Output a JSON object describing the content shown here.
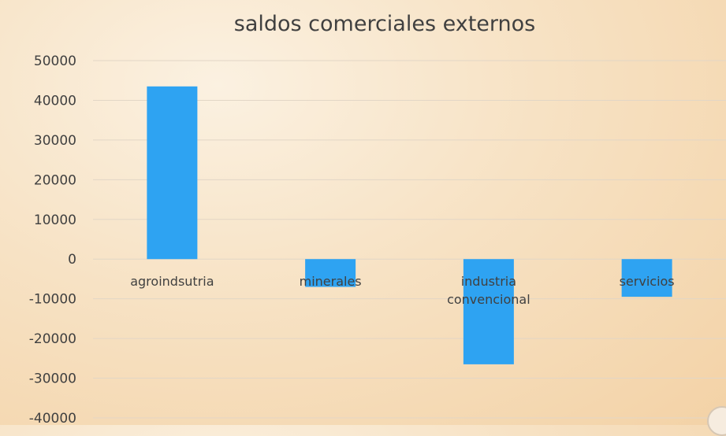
{
  "chart_data": {
    "type": "bar",
    "title": "saldos comerciales externos",
    "categories": [
      [
        "agroindsutria"
      ],
      [
        "minerales"
      ],
      [
        "industria",
        "convencional"
      ],
      [
        "servicios"
      ]
    ],
    "values": [
      43500,
      -7000,
      -26500,
      -9500
    ],
    "ylim": [
      -40000,
      50000
    ],
    "yticks": [
      50000,
      40000,
      30000,
      20000,
      10000,
      0,
      -10000,
      -20000,
      -30000,
      -40000
    ],
    "grid": true,
    "legend": "none",
    "colors": {
      "bar": "#2ea3f2"
    }
  }
}
